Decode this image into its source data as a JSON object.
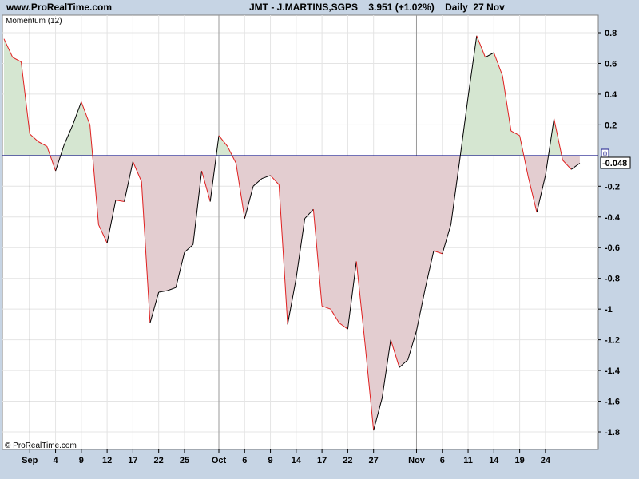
{
  "header": {
    "site": "www.ProRealTime.com",
    "ticker": "JMT - J.MARTINS,SGPS    3.951 (+1.02%)    Daily  27 Nov"
  },
  "panel": {
    "indicator_label": "Momentum (12)",
    "copyright": "© ProRealTime.com",
    "current_value_label": "-0.048",
    "zero_marker": "0"
  },
  "colors": {
    "background": "#c6d4e4",
    "plot": "#ffffff",
    "positive_fill": "#d5e6d1",
    "negative_fill": "#e3cdd0",
    "up_line": "#000000",
    "down_line": "#e02020",
    "zero_line": "#1c1c8c"
  },
  "chart_data": {
    "type": "area",
    "title": "Momentum (12)",
    "baseline": 0,
    "ylim": [
      -1.9,
      0.9
    ],
    "y_ticks": [
      0.8,
      0.6,
      0.4,
      0.2,
      -0.2,
      -0.4,
      -0.6,
      -0.8,
      -1,
      -1.2,
      -1.4,
      -1.6,
      -1.8
    ],
    "y_tick_labels": [
      "0.8",
      "0.6",
      "0.4",
      "0.2",
      "-0.2",
      "-0.4",
      "-0.6",
      "-0.8",
      "-1",
      "-1.2",
      "-1.4",
      "-1.6",
      "-1.8"
    ],
    "x_labels": [
      {
        "label": "Sep",
        "index": 3,
        "major": true
      },
      {
        "label": "4",
        "index": 6,
        "major": false
      },
      {
        "label": "9",
        "index": 9,
        "major": false
      },
      {
        "label": "12",
        "index": 12,
        "major": false
      },
      {
        "label": "17",
        "index": 15,
        "major": false
      },
      {
        "label": "22",
        "index": 18,
        "major": false
      },
      {
        "label": "25",
        "index": 21,
        "major": false
      },
      {
        "label": "Oct",
        "index": 25,
        "major": true
      },
      {
        "label": "6",
        "index": 28,
        "major": false
      },
      {
        "label": "9",
        "index": 31,
        "major": false
      },
      {
        "label": "14",
        "index": 34,
        "major": false
      },
      {
        "label": "17",
        "index": 37,
        "major": false
      },
      {
        "label": "22",
        "index": 40,
        "major": false
      },
      {
        "label": "27",
        "index": 43,
        "major": false
      },
      {
        "label": "Nov",
        "index": 48,
        "major": true
      },
      {
        "label": "6",
        "index": 51,
        "major": false
      },
      {
        "label": "11",
        "index": 54,
        "major": false
      },
      {
        "label": "14",
        "index": 57,
        "major": false
      },
      {
        "label": "19",
        "index": 60,
        "major": false
      },
      {
        "label": "24",
        "index": 63,
        "major": false
      }
    ],
    "values": [
      0.76,
      0.64,
      0.61,
      0.14,
      0.09,
      0.06,
      -0.1,
      0.07,
      0.2,
      0.35,
      0.2,
      -0.45,
      -0.57,
      -0.29,
      -0.3,
      -0.04,
      -0.17,
      -1.09,
      -0.89,
      -0.88,
      -0.86,
      -0.63,
      -0.58,
      -0.1,
      -0.3,
      0.13,
      0.06,
      -0.05,
      -0.41,
      -0.2,
      -0.15,
      -0.13,
      -0.19,
      -1.1,
      -0.8,
      -0.41,
      -0.35,
      -0.98,
      -1.0,
      -1.09,
      -1.13,
      -0.69,
      -1.22,
      -1.79,
      -1.58,
      -1.2,
      -1.38,
      -1.33,
      -1.14,
      -0.87,
      -0.62,
      -0.64,
      -0.45,
      -0.04,
      0.38,
      0.78,
      0.64,
      0.67,
      0.52,
      0.16,
      0.13,
      -0.14,
      -0.37,
      -0.13,
      0.24,
      -0.03,
      -0.09,
      -0.05
    ]
  }
}
